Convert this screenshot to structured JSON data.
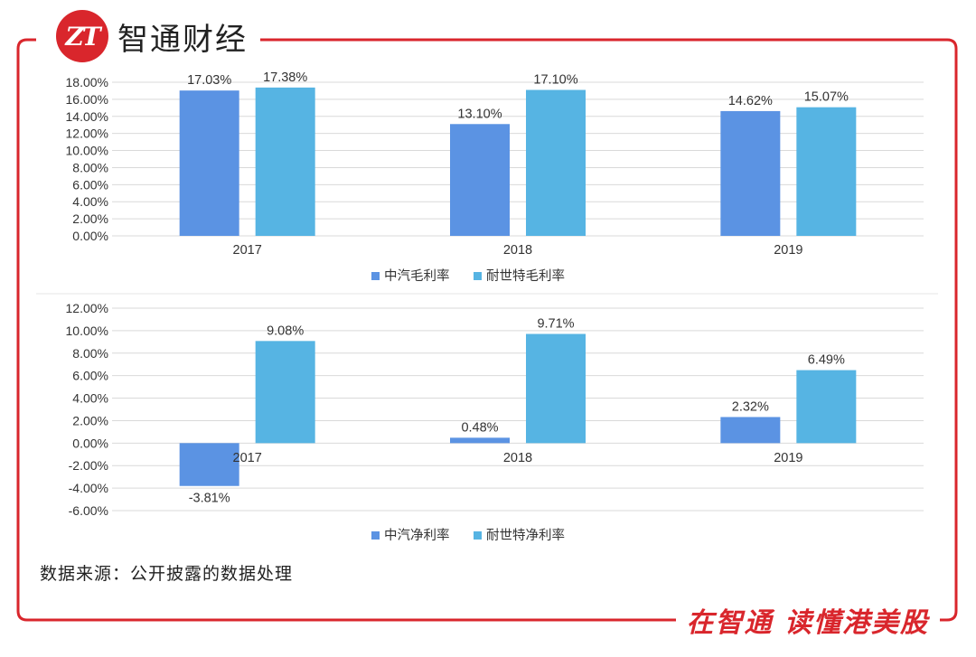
{
  "brand": {
    "logo_text": "ZT",
    "name": "智通财经"
  },
  "slogan": "在智通 读懂港美股",
  "source_note": "数据来源：公开披露的数据处理",
  "colors": {
    "series1": "#5b93e3",
    "series2": "#56b4e3",
    "frame": "#d9262c",
    "grid": "#d9d9d9"
  },
  "chart_data": [
    {
      "type": "bar",
      "categories": [
        "2017",
        "2018",
        "2019"
      ],
      "series": [
        {
          "name": "中汽毛利率",
          "values": [
            17.03,
            13.1,
            14.62
          ]
        },
        {
          "name": "耐世特毛利率",
          "values": [
            17.38,
            17.1,
            15.07
          ]
        }
      ],
      "data_labels": [
        [
          "17.03%",
          "13.10%",
          "14.62%"
        ],
        [
          "17.38%",
          "17.10%",
          "15.07%"
        ]
      ],
      "ylim": [
        0,
        18
      ],
      "yticks": [
        "0.00%",
        "2.00%",
        "4.00%",
        "6.00%",
        "8.00%",
        "10.00%",
        "12.00%",
        "14.00%",
        "16.00%",
        "18.00%"
      ],
      "legend": "bottom",
      "grid": true
    },
    {
      "type": "bar",
      "categories": [
        "2017",
        "2018",
        "2019"
      ],
      "series": [
        {
          "name": "中汽净利率",
          "values": [
            -3.81,
            0.48,
            2.32
          ]
        },
        {
          "name": "耐世特净利率",
          "values": [
            9.08,
            9.71,
            6.49
          ]
        }
      ],
      "data_labels": [
        [
          "-3.81%",
          "0.48%",
          "2.32%"
        ],
        [
          "9.08%",
          "9.71%",
          "6.49%"
        ]
      ],
      "ylim": [
        -6,
        12
      ],
      "yticks": [
        "-6.00%",
        "-4.00%",
        "-2.00%",
        "0.00%",
        "2.00%",
        "4.00%",
        "6.00%",
        "8.00%",
        "10.00%",
        "12.00%"
      ],
      "legend": "bottom",
      "grid": true
    }
  ]
}
